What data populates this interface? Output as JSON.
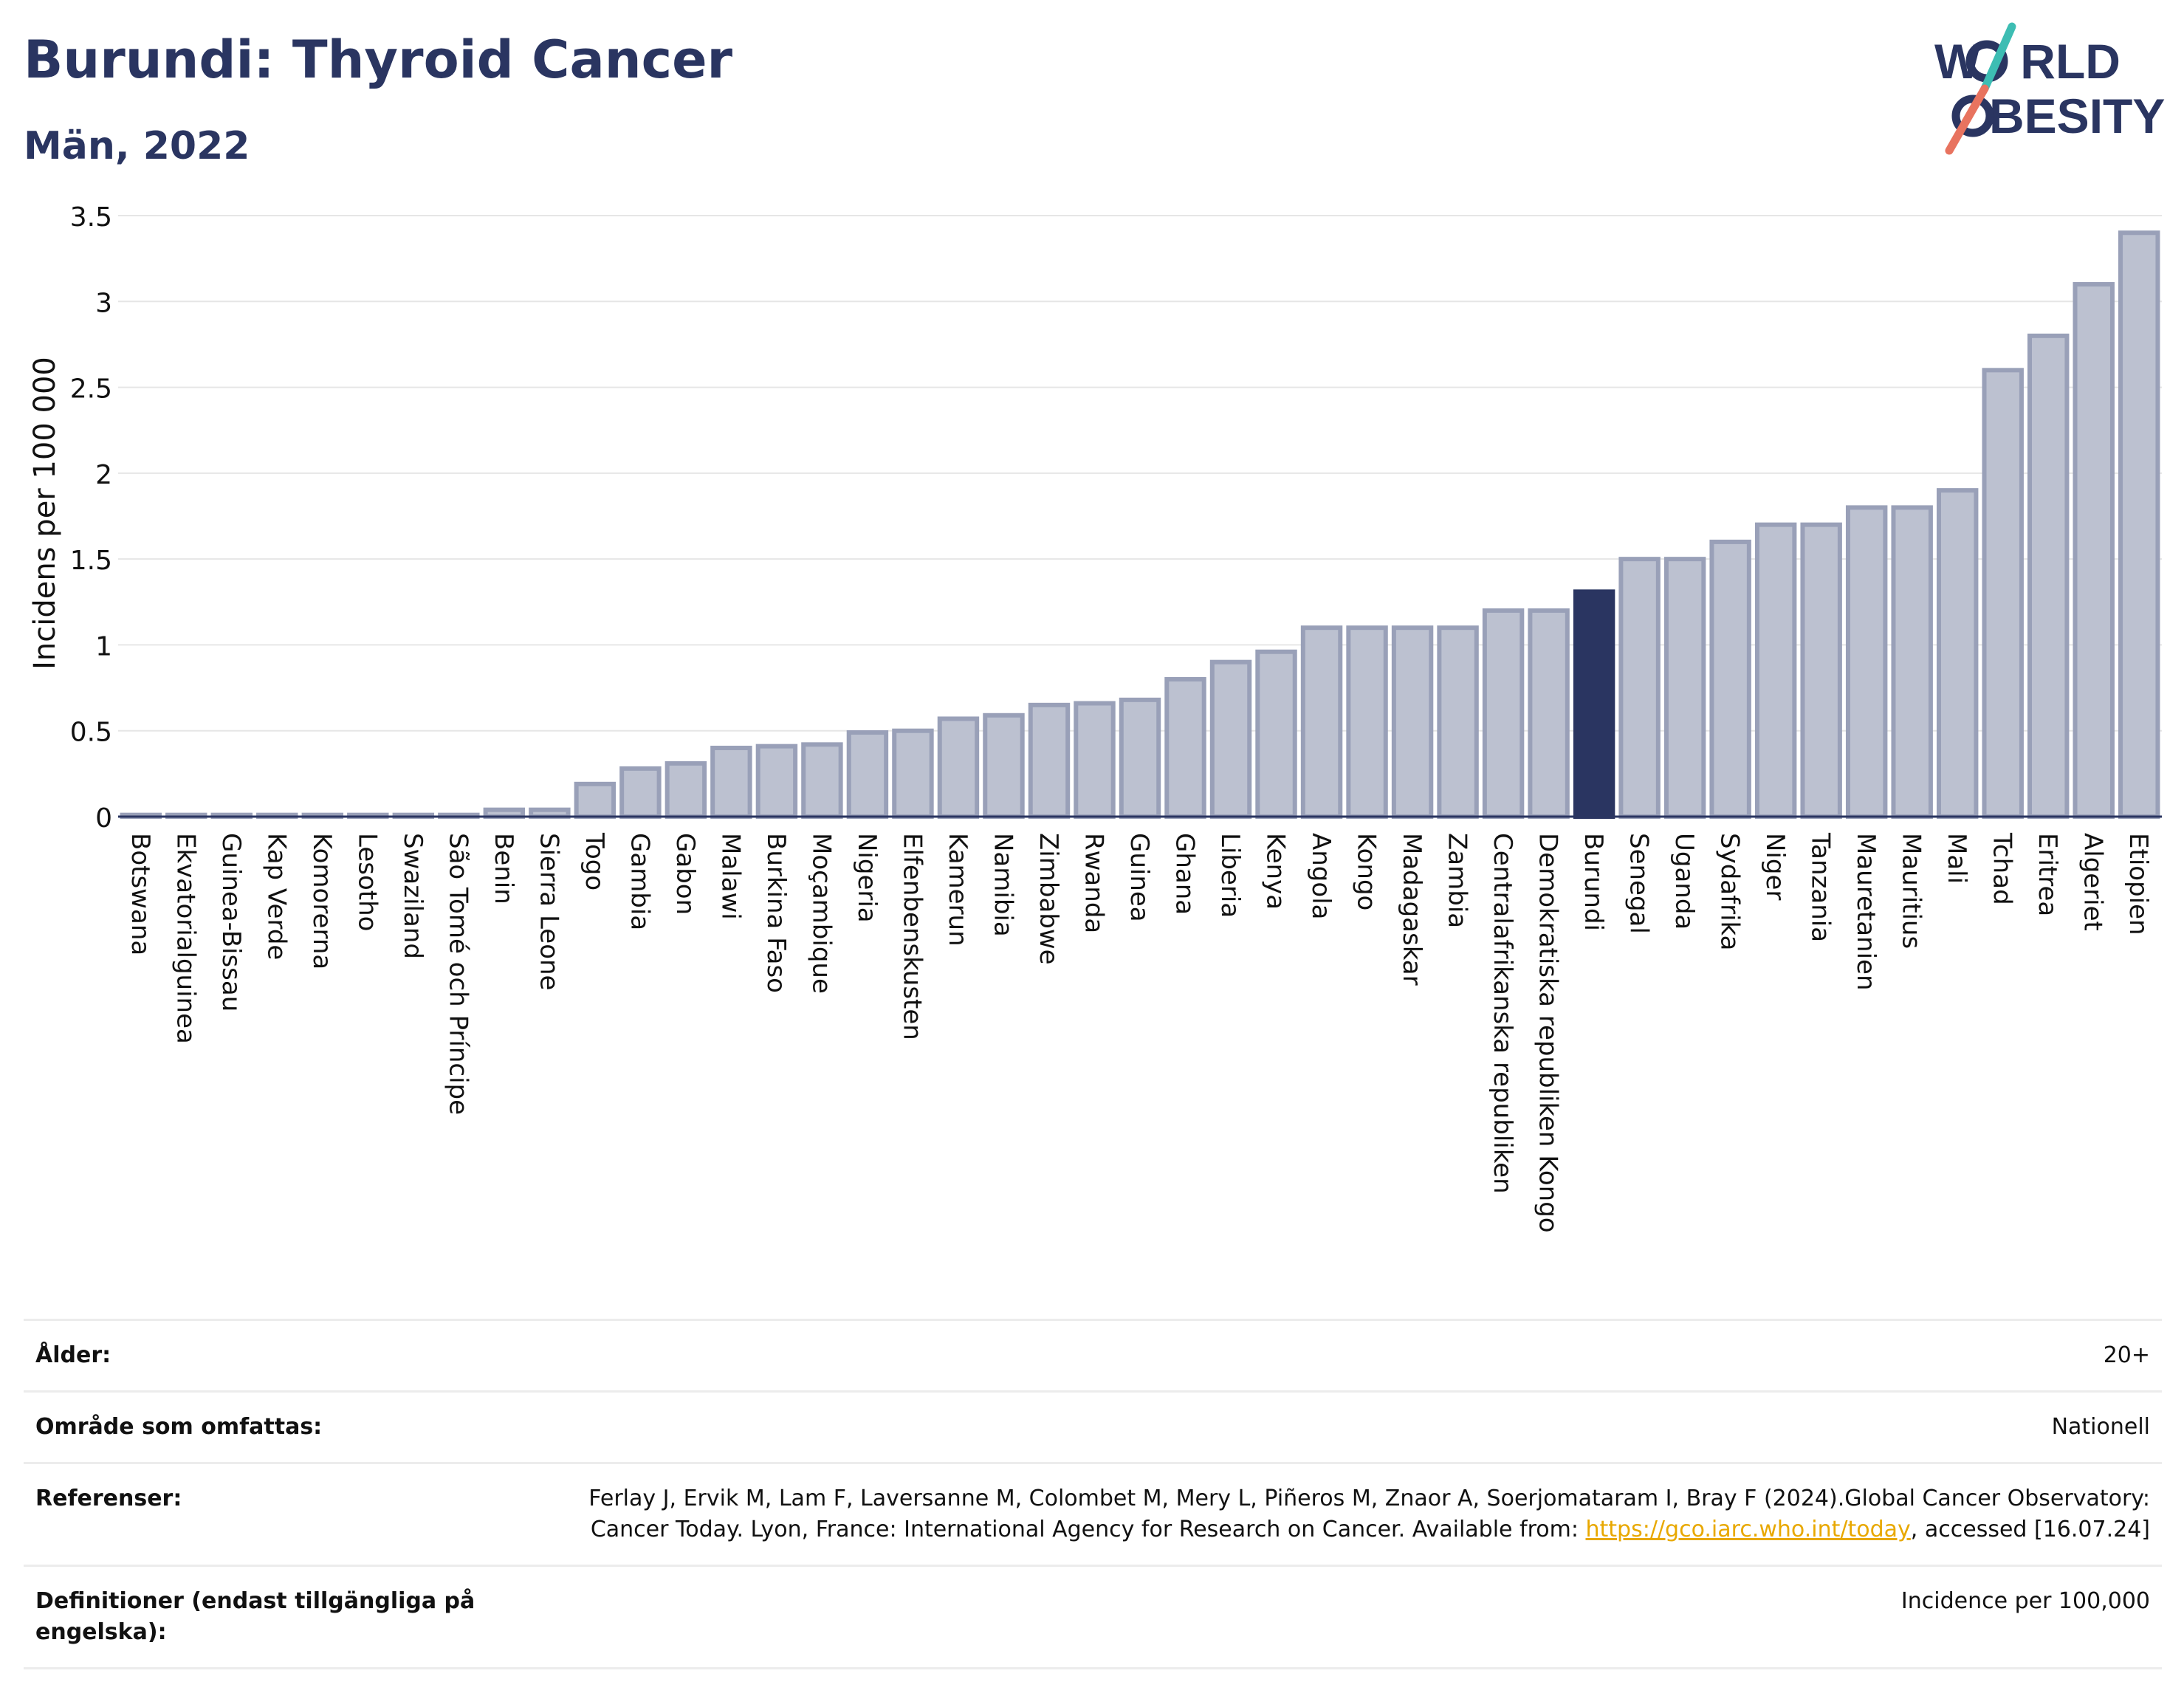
{
  "header": {
    "title": "Burundi: Thyroid Cancer",
    "subtitle": "Män, 2022"
  },
  "logo": {
    "line1_pre": "W",
    "line1_post": "RLD",
    "line2_pre": "",
    "line2_post": "BESITY",
    "colors": {
      "text": "#2a3561",
      "slash_top": "#3dbdb3",
      "slash_bottom": "#e8735f"
    }
  },
  "colors": {
    "bar": "#bcc1d0",
    "bar_stroke": "#99a0b8",
    "highlight": "#2a3561",
    "grid": "#e6e6e6",
    "axis": "#2a3561"
  },
  "chart_data": {
    "type": "bar",
    "title": "Burundi: Thyroid Cancer",
    "subtitle": "Män, 2022",
    "xlabel": "",
    "ylabel": "Incidens per 100 000",
    "ylim": [
      0,
      3.5
    ],
    "yticks": [
      0,
      0.5,
      1,
      1.5,
      2,
      2.5,
      3,
      3.5
    ],
    "ytick_labels": [
      "0",
      "0.5",
      "1",
      "1.5",
      "2",
      "2.5",
      "3",
      "3.5"
    ],
    "grid": true,
    "highlight": "Burundi",
    "categories": [
      "Botswana",
      "Ekvatorialguinea",
      "Guinea-Bissau",
      "Kap Verde",
      "Komorerna",
      "Lesotho",
      "Swaziland",
      "São Tomé och Príncipe",
      "Benin",
      "Sierra Leone",
      "Togo",
      "Gambia",
      "Gabon",
      "Malawi",
      "Burkina Faso",
      "Moçambique",
      "Nigeria",
      "Elfenbenskusten",
      "Kamerun",
      "Namibia",
      "Zimbabwe",
      "Rwanda",
      "Guinea",
      "Ghana",
      "Liberia",
      "Kenya",
      "Angola",
      "Kongo",
      "Madagaskar",
      "Zambia",
      "Centralafrikanska republiken",
      "Demokratiska republiken Kongo",
      "Burundi",
      "Senegal",
      "Uganda",
      "Sydafrika",
      "Niger",
      "Tanzania",
      "Mauretanien",
      "Mauritius",
      "Mali",
      "Tchad",
      "Eritrea",
      "Algeriet",
      "Etiopien"
    ],
    "values": [
      0.01,
      0.01,
      0.01,
      0.01,
      0.01,
      0.01,
      0.01,
      0.01,
      0.04,
      0.04,
      0.19,
      0.28,
      0.31,
      0.4,
      0.41,
      0.42,
      0.49,
      0.5,
      0.57,
      0.59,
      0.65,
      0.66,
      0.68,
      0.8,
      0.9,
      0.96,
      1.1,
      1.1,
      1.1,
      1.1,
      1.2,
      1.2,
      1.31,
      1.5,
      1.5,
      1.6,
      1.7,
      1.7,
      1.8,
      1.8,
      1.9,
      2.6,
      2.8,
      3.1,
      3.4
    ]
  },
  "info": {
    "age_label": "Ålder:",
    "age_value": "20+",
    "area_label": "Område som omfattas:",
    "area_value": "Nationell",
    "ref_label": "Referenser:",
    "ref_text_1": "Ferlay J, Ervik M, Lam F, Laversanne M, Colombet M, Mery L, Piñeros M, Znaor A, Soerjomataram I, Bray F (2024).Global Cancer Observatory: Cancer Today. Lyon, France: International Agency for Research on Cancer. Available from: ",
    "ref_link": "https://gco.iarc.who.int/today",
    "ref_text_2": ", accessed [16.07.24]",
    "def_label": "Definitioner (endast tillgängliga på engelska):",
    "def_value": "Incidence per 100,000"
  }
}
